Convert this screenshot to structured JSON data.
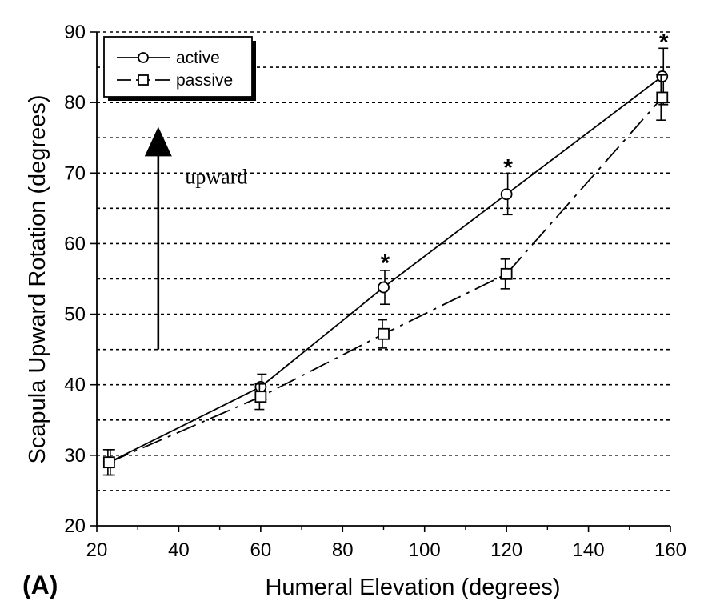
{
  "chart_data": {
    "type": "line",
    "panel_label": "(A)",
    "title": "",
    "xlabel": "Humeral Elevation (degrees)",
    "ylabel": "Scapula Upward Rotation (degrees)",
    "xlim": [
      20,
      160
    ],
    "ylim": [
      20,
      90
    ],
    "xticks": [
      20,
      40,
      60,
      80,
      100,
      120,
      140,
      160
    ],
    "yticks": [
      20,
      30,
      40,
      50,
      60,
      70,
      80,
      90
    ],
    "grid": "horizontal dashed lines every 5 degrees",
    "legend_position": "top-left",
    "series": [
      {
        "name": "active",
        "line_style": "solid",
        "marker": "circle",
        "points": [
          {
            "x": 23,
            "y": 29.0,
            "err": 1.8
          },
          {
            "x": 60,
            "y": 39.7,
            "err": 1.8
          },
          {
            "x": 90,
            "y": 53.8,
            "err": 2.4
          },
          {
            "x": 120,
            "y": 67.0,
            "err": 2.9
          },
          {
            "x": 158,
            "y": 83.7,
            "err": 4.0
          }
        ]
      },
      {
        "name": "passive",
        "line_style": "dashed",
        "marker": "square",
        "points": [
          {
            "x": 23,
            "y": 29.0,
            "err": 1.8
          },
          {
            "x": 60,
            "y": 38.3,
            "err": 1.8
          },
          {
            "x": 90,
            "y": 47.2,
            "err": 2.0
          },
          {
            "x": 120,
            "y": 55.7,
            "err": 2.1
          },
          {
            "x": 158,
            "y": 80.7,
            "err": 3.2
          }
        ]
      }
    ],
    "significance_markers": [
      {
        "x": 90,
        "y": 57.5,
        "label": "*"
      },
      {
        "x": 120,
        "y": 71.0,
        "label": "*"
      },
      {
        "x": 158,
        "y": 88.8,
        "label": "*"
      }
    ],
    "annotations": [
      {
        "text": "upward",
        "x": 48,
        "y": 69.5
      },
      {
        "type": "arrow",
        "x": 35,
        "y_from": 45,
        "y_to": 76
      }
    ]
  }
}
